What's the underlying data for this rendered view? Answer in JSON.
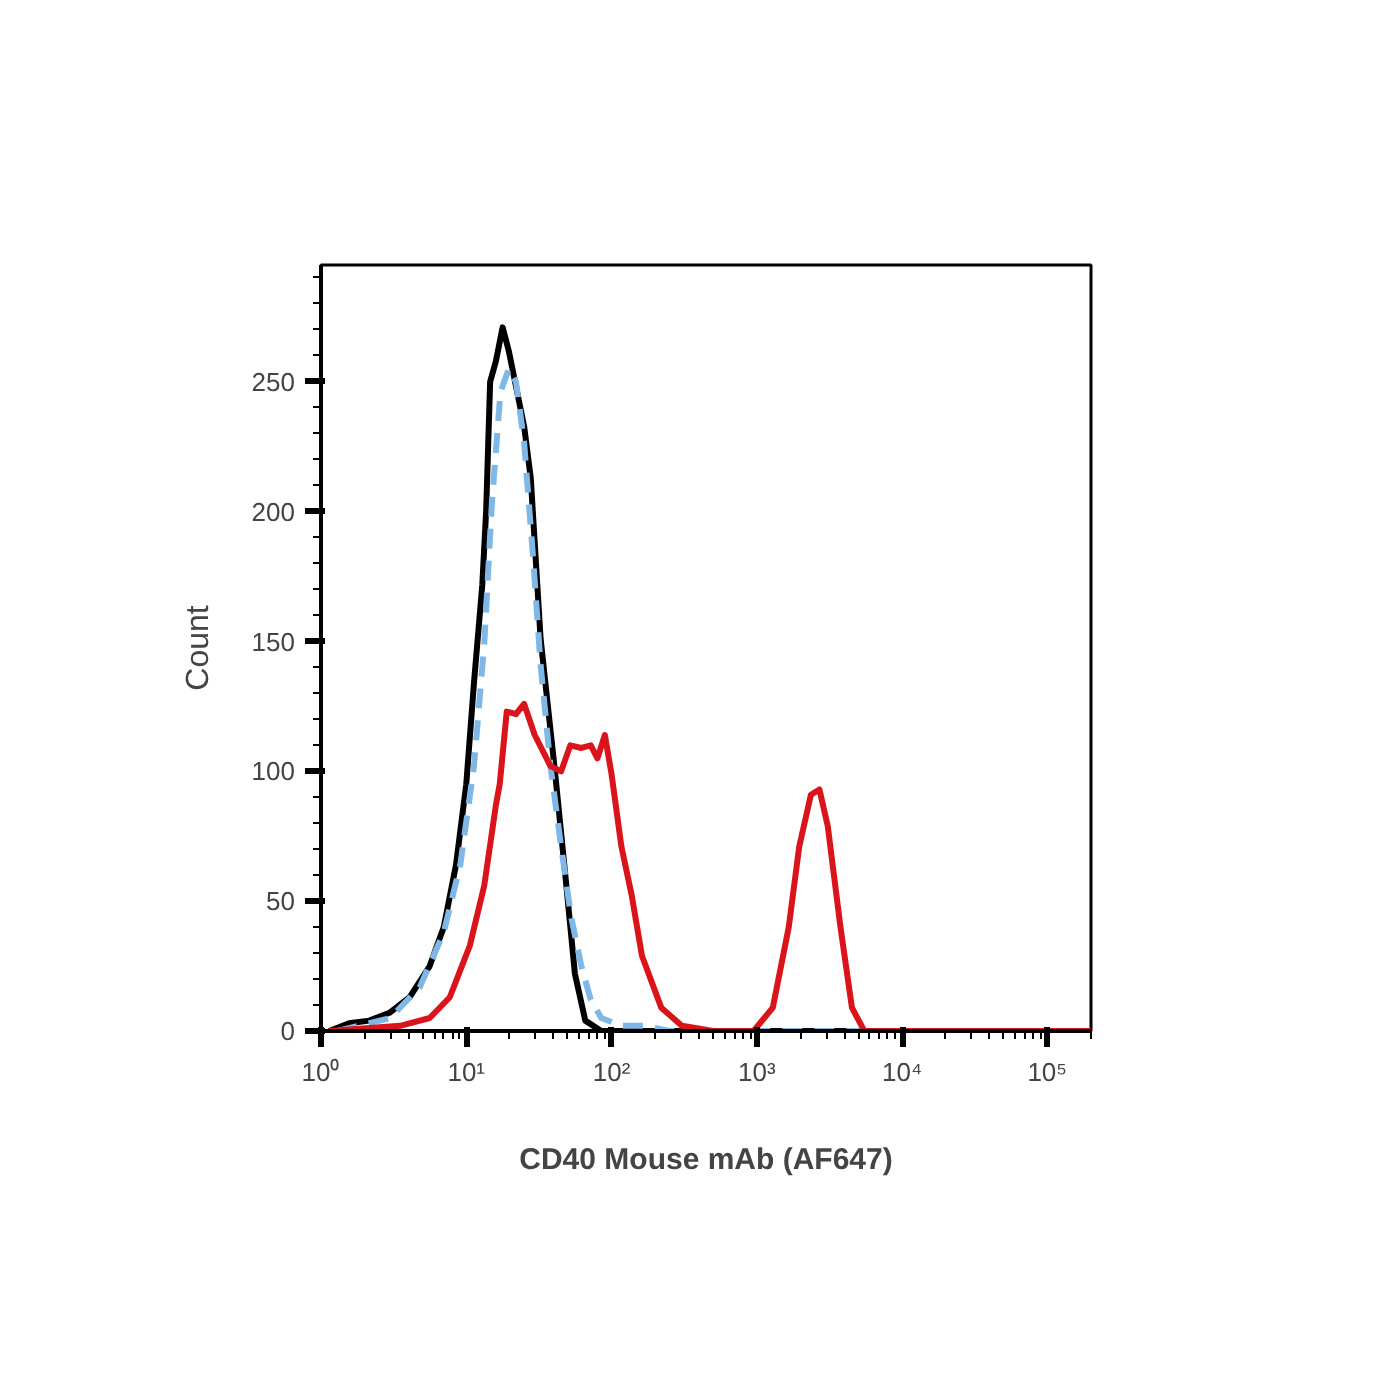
{
  "chart_data": {
    "type": "line",
    "xlabel": "CD40 Mouse mAb (AF647)",
    "ylabel": "Count",
    "log": "x",
    "grid": false,
    "marker": "none",
    "xlim": [
      1,
      200000
    ],
    "ylim": [
      0,
      295
    ],
    "xticks": [
      {
        "value": 1,
        "label": "10⁰"
      },
      {
        "value": 10,
        "label": "10¹"
      },
      {
        "value": 100,
        "label": "10²"
      },
      {
        "value": 1000,
        "label": "10³"
      },
      {
        "value": 10000,
        "label": "10⁴"
      },
      {
        "value": 100000,
        "label": "10⁵"
      }
    ],
    "yticks": [
      0,
      50,
      100,
      150,
      200,
      250
    ],
    "series": [
      {
        "color": "#000000",
        "line_style": "solid",
        "x": [
          1.14,
          1.56,
          2.15,
          2.96,
          4.08,
          5.6,
          7,
          8.5,
          10,
          11.3,
          12.9,
          13.7,
          14.6,
          16,
          17.8,
          19.6,
          25,
          27.8,
          32.5,
          40.8,
          47.9,
          56,
          66,
          85,
          200000
        ],
        "values": [
          0,
          3,
          4,
          7,
          13,
          25,
          40,
          64,
          95,
          134,
          172,
          200,
          250,
          258,
          271,
          262,
          233,
          213,
          151,
          100,
          61,
          22,
          4,
          0,
          0
        ]
      },
      {
        "color": "#7fb8e6",
        "line_style": "dashed",
        "x": [
          1.3,
          3,
          4.8,
          7,
          9.1,
          11.3,
          13.3,
          15,
          17.2,
          19.6,
          22,
          25,
          28.7,
          32.5,
          38,
          45,
          52.7,
          62,
          72,
          85,
          117,
          171,
          250,
          200000
        ],
        "values": [
          0,
          5,
          17,
          38,
          64,
          102,
          149,
          203,
          246,
          255,
          250,
          227,
          184,
          141,
          102,
          71,
          44,
          25,
          12,
          5,
          2,
          2,
          0,
          0
        ]
      },
      {
        "color": "#d9141b",
        "line_style": "solid",
        "x": [
          1.14,
          3.5,
          5.6,
          7.7,
          10.6,
          13.3,
          16,
          17,
          19,
          22,
          25,
          29.6,
          38,
          45,
          52,
          62,
          72,
          80,
          90,
          100,
          117,
          138,
          162,
          220,
          305,
          500,
          950,
          1290,
          1660,
          1960,
          2360,
          2700,
          3080,
          3770,
          4520,
          5500,
          200000
        ],
        "values": [
          0,
          2,
          5,
          13,
          33,
          56,
          87,
          95,
          123,
          122,
          126,
          114,
          102,
          100,
          110,
          109,
          110,
          105,
          114,
          99,
          71,
          52,
          29,
          9,
          2,
          0,
          0,
          9,
          40,
          71,
          91,
          93,
          79,
          40,
          9,
          0,
          0
        ]
      }
    ]
  }
}
